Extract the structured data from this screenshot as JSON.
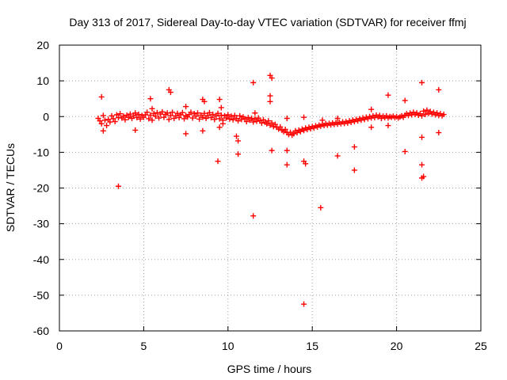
{
  "chart_data": {
    "type": "scatter",
    "title": "Day 313 of 2017, Sidereal Day-to-day VTEC variation (SDTVAR) for receiver ffmj",
    "xlabel": "GPS time / hours",
    "ylabel": "SDTVAR / TECUs",
    "xlim": [
      0,
      25
    ],
    "ylim": [
      -60,
      20
    ],
    "xticks": [
      "0",
      "5",
      "10",
      "15",
      "20",
      "25"
    ],
    "yticks": [
      "20",
      "10",
      "0",
      "-10",
      "-20",
      "-30",
      "-40",
      "-50",
      "-60"
    ],
    "grid": true,
    "marker": "+",
    "colors": {
      "series": "#ff0000",
      "grid": "#a0a0a0",
      "axes": "#000000"
    },
    "series": [
      {
        "name": "SDTVAR",
        "points": [
          [
            2.3,
            -0.5
          ],
          [
            2.4,
            -1.2
          ],
          [
            2.5,
            -2.0
          ],
          [
            2.6,
            0.3
          ],
          [
            2.7,
            -1.0
          ],
          [
            2.8,
            -2.5
          ],
          [
            2.9,
            -0.8
          ],
          [
            3.0,
            -1.5
          ],
          [
            3.1,
            0.2
          ],
          [
            3.2,
            -0.6
          ],
          [
            3.3,
            -1.4
          ],
          [
            3.4,
            0.5
          ],
          [
            3.5,
            -0.3
          ],
          [
            3.6,
            0.8
          ],
          [
            3.7,
            -0.4
          ],
          [
            3.8,
            0.1
          ],
          [
            3.9,
            -0.9
          ],
          [
            4.0,
            0.4
          ],
          [
            4.1,
            -0.2
          ],
          [
            4.2,
            0.7
          ],
          [
            4.3,
            -0.5
          ],
          [
            4.4,
            0.2
          ],
          [
            4.5,
            1.0
          ],
          [
            4.6,
            -0.3
          ],
          [
            4.7,
            0.6
          ],
          [
            4.8,
            -0.7
          ],
          [
            4.9,
            0.3
          ],
          [
            5.0,
            -0.2
          ],
          [
            5.1,
            0.5
          ],
          [
            5.2,
            1.2
          ],
          [
            5.3,
            -0.6
          ],
          [
            5.4,
            0.4
          ],
          [
            5.5,
            -1.0
          ],
          [
            5.6,
            0.9
          ],
          [
            5.7,
            0.1
          ],
          [
            5.8,
            1.1
          ],
          [
            5.9,
            -0.4
          ],
          [
            6.0,
            0.7
          ],
          [
            6.1,
            1.3
          ],
          [
            6.2,
            -0.2
          ],
          [
            6.3,
            0.6
          ],
          [
            6.4,
            1.0
          ],
          [
            6.5,
            -0.8
          ],
          [
            6.6,
            0.3
          ],
          [
            6.7,
            1.2
          ],
          [
            6.8,
            -0.5
          ],
          [
            6.9,
            0.2
          ],
          [
            7.0,
            0.9
          ],
          [
            7.1,
            -0.3
          ],
          [
            7.2,
            0.5
          ],
          [
            7.3,
            1.1
          ],
          [
            7.4,
            -0.6
          ],
          [
            7.5,
            0.3
          ],
          [
            7.6,
            -0.1
          ],
          [
            7.7,
            0.6
          ],
          [
            7.8,
            1.2
          ],
          [
            7.9,
            -0.4
          ],
          [
            8.0,
            0.8
          ],
          [
            8.1,
            0.1
          ],
          [
            8.2,
            1.0
          ],
          [
            8.3,
            -0.7
          ],
          [
            8.4,
            0.4
          ],
          [
            8.5,
            -0.2
          ],
          [
            8.6,
            0.9
          ],
          [
            8.7,
            -0.5
          ],
          [
            8.8,
            0.3
          ],
          [
            8.9,
            1.1
          ],
          [
            9.0,
            -0.3
          ],
          [
            9.1,
            0.6
          ],
          [
            9.2,
            -0.8
          ],
          [
            9.3,
            0.2
          ],
          [
            9.4,
            0.9
          ],
          [
            9.5,
            -0.6
          ],
          [
            9.6,
            0.4
          ],
          [
            9.7,
            -1.0
          ],
          [
            9.8,
            0.2
          ],
          [
            9.9,
            -0.4
          ],
          [
            10.0,
            0.5
          ],
          [
            10.1,
            -0.7
          ],
          [
            10.2,
            0.1
          ],
          [
            10.3,
            -0.9
          ],
          [
            10.4,
            0.3
          ],
          [
            10.5,
            -0.5
          ],
          [
            10.6,
            -1.2
          ],
          [
            10.7,
            0.2
          ],
          [
            10.8,
            -0.8
          ],
          [
            10.9,
            -0.1
          ],
          [
            11.0,
            -0.6
          ],
          [
            11.1,
            -1.4
          ],
          [
            11.2,
            -0.3
          ],
          [
            11.3,
            -1.0
          ],
          [
            11.4,
            -0.5
          ],
          [
            11.5,
            -1.5
          ],
          [
            11.6,
            -0.7
          ],
          [
            11.7,
            -1.3
          ],
          [
            11.8,
            -0.4
          ],
          [
            11.9,
            -1.1
          ],
          [
            12.0,
            -1.8
          ],
          [
            12.1,
            -0.9
          ],
          [
            12.2,
            -1.6
          ],
          [
            12.3,
            -2.0
          ],
          [
            12.4,
            -1.2
          ],
          [
            12.5,
            -2.4
          ],
          [
            12.6,
            -1.8
          ],
          [
            12.7,
            -2.8
          ],
          [
            12.8,
            -2.2
          ],
          [
            12.9,
            -3.0
          ],
          [
            13.0,
            -3.5
          ],
          [
            13.1,
            -2.9
          ],
          [
            13.2,
            -3.8
          ],
          [
            13.3,
            -4.2
          ],
          [
            13.4,
            -3.6
          ],
          [
            13.5,
            -4.5
          ],
          [
            13.6,
            -5.0
          ],
          [
            13.7,
            -4.4
          ],
          [
            13.8,
            -5.2
          ],
          [
            13.9,
            -4.8
          ],
          [
            14.0,
            -4.0
          ],
          [
            14.1,
            -4.5
          ],
          [
            14.2,
            -3.8
          ],
          [
            14.3,
            -4.2
          ],
          [
            14.4,
            -3.5
          ],
          [
            14.5,
            -3.9
          ],
          [
            14.6,
            -3.2
          ],
          [
            14.7,
            -3.6
          ],
          [
            14.8,
            -3.0
          ],
          [
            14.9,
            -3.4
          ],
          [
            15.0,
            -2.8
          ],
          [
            15.1,
            -3.2
          ],
          [
            15.2,
            -2.6
          ],
          [
            15.3,
            -2.9
          ],
          [
            15.4,
            -2.4
          ],
          [
            15.5,
            -2.7
          ],
          [
            15.6,
            -2.2
          ],
          [
            15.7,
            -2.5
          ],
          [
            15.8,
            -2.0
          ],
          [
            15.9,
            -2.4
          ],
          [
            16.0,
            -1.9
          ],
          [
            16.1,
            -2.3
          ],
          [
            16.2,
            -1.8
          ],
          [
            16.3,
            -2.2
          ],
          [
            16.4,
            -1.7
          ],
          [
            16.5,
            -2.1
          ],
          [
            16.6,
            -1.6
          ],
          [
            16.7,
            -2.0
          ],
          [
            16.8,
            -1.5
          ],
          [
            16.9,
            -1.9
          ],
          [
            17.0,
            -1.4
          ],
          [
            17.1,
            -1.8
          ],
          [
            17.2,
            -1.2
          ],
          [
            17.3,
            -1.6
          ],
          [
            17.4,
            -1.0
          ],
          [
            17.5,
            -1.4
          ],
          [
            17.6,
            -0.8
          ],
          [
            17.7,
            -1.2
          ],
          [
            17.8,
            -0.6
          ],
          [
            17.9,
            -1.0
          ],
          [
            18.0,
            -0.4
          ],
          [
            18.1,
            -0.8
          ],
          [
            18.2,
            -0.2
          ],
          [
            18.3,
            -0.6
          ],
          [
            18.4,
            0.0
          ],
          [
            18.5,
            -0.4
          ],
          [
            18.6,
            0.2
          ],
          [
            18.7,
            -0.3
          ],
          [
            18.8,
            0.4
          ],
          [
            18.9,
            -0.1
          ],
          [
            19.0,
            0.3
          ],
          [
            19.1,
            -0.5
          ],
          [
            19.2,
            0.1
          ],
          [
            19.3,
            -0.3
          ],
          [
            19.4,
            0.2
          ],
          [
            19.5,
            -0.4
          ],
          [
            19.6,
            0.0
          ],
          [
            19.7,
            -0.2
          ],
          [
            19.8,
            0.1
          ],
          [
            19.9,
            -0.3
          ],
          [
            20.0,
            0.0
          ],
          [
            20.1,
            -0.4
          ],
          [
            20.2,
            -0.1
          ],
          [
            20.3,
            0.2
          ],
          [
            20.4,
            -0.2
          ],
          [
            20.5,
            0.4
          ],
          [
            20.6,
            0.8
          ],
          [
            20.7,
            0.3
          ],
          [
            20.8,
            1.0
          ],
          [
            20.9,
            0.5
          ],
          [
            21.0,
            1.2
          ],
          [
            21.1,
            0.6
          ],
          [
            21.2,
            1.0
          ],
          [
            21.3,
            0.4
          ],
          [
            21.4,
            0.8
          ],
          [
            21.5,
            0.2
          ],
          [
            21.6,
            1.5
          ],
          [
            21.7,
            0.6
          ],
          [
            21.8,
            1.8
          ],
          [
            21.9,
            0.9
          ],
          [
            22.0,
            1.4
          ],
          [
            22.1,
            0.7
          ],
          [
            22.2,
            1.2
          ],
          [
            22.3,
            0.5
          ],
          [
            22.4,
            1.0
          ],
          [
            22.5,
            0.3
          ],
          [
            22.6,
            0.8
          ],
          [
            22.7,
            0.2
          ],
          [
            22.8,
            0.6
          ],
          [
            2.5,
            5.5
          ],
          [
            2.6,
            -4.0
          ],
          [
            3.5,
            -19.5
          ],
          [
            4.5,
            -3.8
          ],
          [
            5.4,
            5.0
          ],
          [
            5.5,
            2.2
          ],
          [
            6.5,
            7.5
          ],
          [
            6.6,
            6.8
          ],
          [
            7.5,
            2.8
          ],
          [
            7.5,
            -4.8
          ],
          [
            8.5,
            4.8
          ],
          [
            8.6,
            4.2
          ],
          [
            8.5,
            -4.0
          ],
          [
            9.5,
            4.8
          ],
          [
            9.6,
            2.5
          ],
          [
            9.5,
            -3.0
          ],
          [
            9.4,
            -12.5
          ],
          [
            9.7,
            -2.0
          ],
          [
            10.5,
            -5.5
          ],
          [
            10.6,
            -6.8
          ],
          [
            10.6,
            -10.5
          ],
          [
            11.5,
            9.5
          ],
          [
            11.6,
            1.0
          ],
          [
            11.5,
            -27.8
          ],
          [
            12.5,
            11.5
          ],
          [
            12.6,
            10.8
          ],
          [
            12.5,
            5.8
          ],
          [
            12.5,
            4.2
          ],
          [
            12.6,
            -9.5
          ],
          [
            13.5,
            -9.5
          ],
          [
            13.5,
            -13.5
          ],
          [
            13.5,
            -0.5
          ],
          [
            14.5,
            -12.5
          ],
          [
            14.6,
            -13.2
          ],
          [
            14.5,
            -0.2
          ],
          [
            14.5,
            -52.5
          ],
          [
            15.5,
            -25.5
          ],
          [
            15.6,
            -1.0
          ],
          [
            16.5,
            -11.0
          ],
          [
            16.5,
            -0.5
          ],
          [
            17.5,
            -15.0
          ],
          [
            17.5,
            -8.5
          ],
          [
            18.5,
            -3.0
          ],
          [
            18.5,
            2.0
          ],
          [
            19.5,
            6.0
          ],
          [
            19.5,
            -2.5
          ],
          [
            20.5,
            4.5
          ],
          [
            20.5,
            -9.8
          ],
          [
            21.5,
            9.5
          ],
          [
            21.5,
            -5.8
          ],
          [
            21.5,
            -13.5
          ],
          [
            21.5,
            -17.2
          ],
          [
            21.6,
            -16.8
          ],
          [
            22.5,
            7.5
          ],
          [
            22.5,
            -4.5
          ]
        ]
      }
    ]
  }
}
